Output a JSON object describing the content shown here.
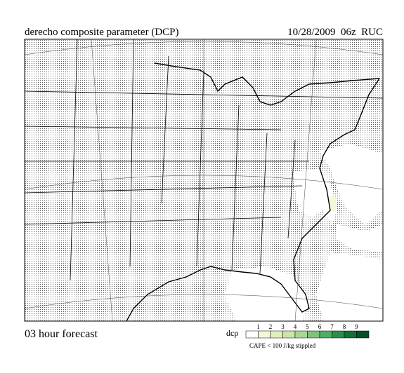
{
  "header": {
    "title": "derecho composite parameter (DCP)",
    "valid": "10/28/2009  06z  RUC"
  },
  "footer": {
    "forecast": "03 hour forecast",
    "note": "CAPE < 100 J/kg stippled"
  },
  "legend": {
    "title": "dcp",
    "colors": [
      "#ffffff",
      "#f4f8d8",
      "#e2f0b8",
      "#c8e6a4",
      "#a8d890",
      "#7cc47c",
      "#4eae64",
      "#2c8e4c",
      "#127038",
      "#045028"
    ],
    "labels": [
      "1",
      "2",
      "3",
      "4",
      "5",
      "6",
      "7",
      "8",
      "9"
    ]
  }
}
